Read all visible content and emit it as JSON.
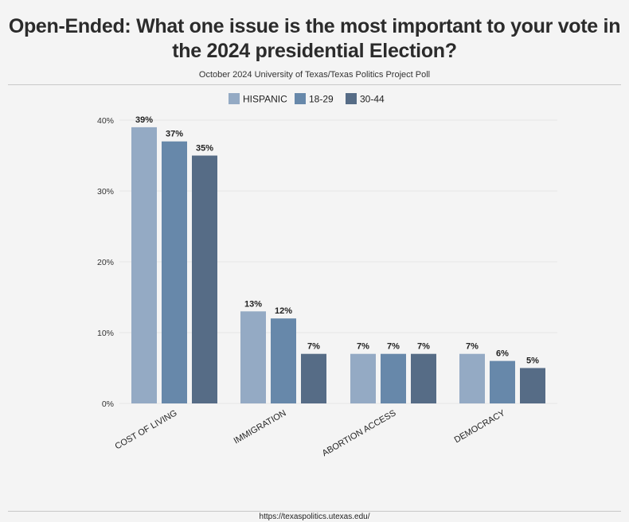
{
  "title": "Open-Ended: What one issue is the most important to your vote in the 2024 presidential Election?",
  "subtitle": "October 2024 University of Texas/Texas Politics Project Poll",
  "footer": "https://texaspolitics.utexas.edu/",
  "chart_data": {
    "type": "bar",
    "categories": [
      "COST OF LIVING",
      "IMMIGRATION",
      "ABORTION ACCESS",
      "DEMOCRACY"
    ],
    "series": [
      {
        "name": "HISPANIC",
        "color": "#94aac4",
        "values": [
          39,
          13,
          7,
          7
        ]
      },
      {
        "name": "18-29",
        "color": "#6788aa",
        "values": [
          37,
          12,
          7,
          6
        ]
      },
      {
        "name": "30-44",
        "color": "#566c86",
        "values": [
          35,
          7,
          7,
          5
        ]
      }
    ],
    "ylim": [
      0,
      40
    ],
    "yticks": [
      0,
      10,
      20,
      30,
      40
    ],
    "ytick_labels": [
      "0%",
      "10%",
      "20%",
      "30%",
      "40%"
    ],
    "value_suffix": "%",
    "legend_position": "top-center",
    "grid": true
  }
}
